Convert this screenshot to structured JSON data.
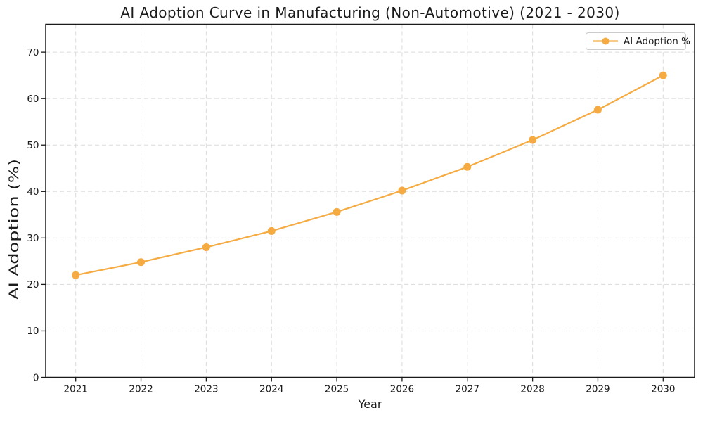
{
  "chart_data": {
    "type": "line",
    "title": "AI Adoption Curve in Manufacturing (Non-Automotive) (2021 - 2030)",
    "xlabel": "Year",
    "ylabel": "AI Adoption (%)",
    "categories": [
      "2021",
      "2022",
      "2023",
      "2024",
      "2025",
      "2026",
      "2027",
      "2028",
      "2029",
      "2030"
    ],
    "series": [
      {
        "name": "AI Adoption %",
        "color": "#F5AB42",
        "values": [
          22.0,
          24.8,
          28.0,
          31.5,
          35.6,
          40.2,
          45.3,
          51.1,
          57.6,
          65.0
        ]
      }
    ],
    "ylim": [
      0,
      76
    ],
    "yticks": [
      0,
      10,
      20,
      30,
      40,
      50,
      60,
      70
    ],
    "grid": {
      "show": true,
      "linestyle": "dashed",
      "color": "#DBDBDB"
    },
    "legend": {
      "position": "upper right",
      "entries": [
        "AI Adoption %"
      ]
    },
    "colors": {
      "text": "#1A1A1A",
      "spine": "#1A1A1A",
      "background": "#FFFFFF"
    }
  }
}
